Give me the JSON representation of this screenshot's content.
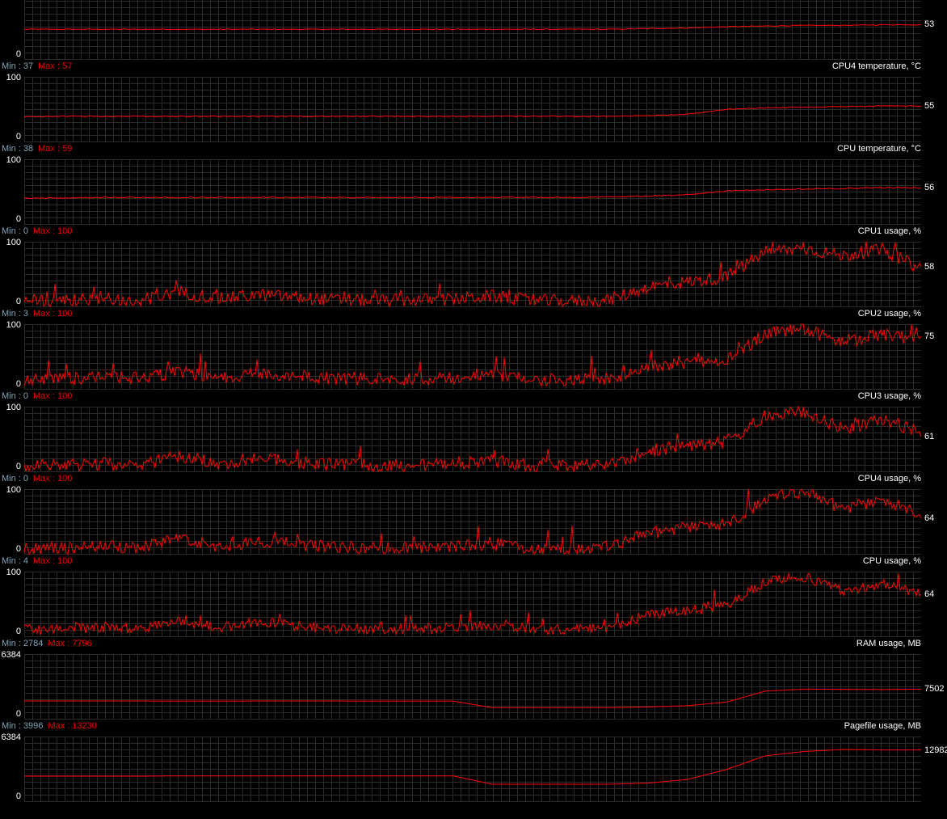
{
  "line_color": "#ff0000",
  "min_color": "#7fa3b8",
  "max_color": "#e80000",
  "panels": [
    {
      "title": "",
      "min": "",
      "max": "",
      "ytop": "",
      "ybot": "0",
      "scale": 100,
      "current": "53",
      "trend": [
        46,
        46,
        46,
        46,
        46,
        46,
        46,
        46,
        46,
        46,
        46,
        46,
        46,
        46,
        46,
        46,
        47,
        48,
        50,
        51,
        52,
        52,
        53,
        53
      ],
      "noise": 0.6
    },
    {
      "title": "CPU4 temperature, °C",
      "min": "Min : 37",
      "max": "Max : 57",
      "ytop": "100",
      "ybot": "0",
      "scale": 100,
      "current": "55",
      "trend": [
        38,
        39,
        39,
        39,
        39,
        39,
        39,
        39,
        39,
        39,
        39,
        39,
        39,
        39,
        39,
        39,
        40,
        42,
        50,
        52,
        53,
        54,
        55,
        55
      ],
      "noise": 0.7
    },
    {
      "title": "CPU temperature, °C",
      "min": "Min : 38",
      "max": "Max : 59",
      "ytop": "100",
      "ybot": "0",
      "scale": 100,
      "current": "56",
      "trend": [
        40,
        40,
        41,
        41,
        41,
        41,
        41,
        41,
        41,
        41,
        41,
        41,
        41,
        41,
        41,
        42,
        43,
        45,
        51,
        53,
        54,
        55,
        56,
        56
      ],
      "noise": 0.8
    },
    {
      "title": "CPU1 usage, %",
      "min": "Min : 0",
      "max": "Max : 100",
      "ytop": "100",
      "ybot": "0",
      "scale": 100,
      "current": "58",
      "trend": [
        8,
        9,
        12,
        10,
        22,
        12,
        18,
        14,
        10,
        9,
        10,
        11,
        16,
        9,
        8,
        10,
        30,
        38,
        45,
        85,
        90,
        78,
        88,
        58
      ],
      "noise": 10
    },
    {
      "title": "CPU2 usage, %",
      "min": "Min : 3",
      "max": "Max : 100",
      "ytop": "100",
      "ybot": "0",
      "scale": 100,
      "current": "75",
      "trend": [
        15,
        16,
        18,
        16,
        26,
        18,
        24,
        20,
        16,
        15,
        16,
        17,
        20,
        15,
        14,
        15,
        35,
        40,
        45,
        85,
        92,
        70,
        85,
        75
      ],
      "noise": 10
    },
    {
      "title": "CPU3 usage, %",
      "min": "Min : 0",
      "max": "Max : 100",
      "ytop": "100",
      "ybot": "0",
      "scale": 100,
      "current": "61",
      "trend": [
        8,
        9,
        12,
        10,
        24,
        12,
        20,
        14,
        10,
        9,
        10,
        11,
        16,
        9,
        8,
        10,
        32,
        40,
        45,
        85,
        92,
        65,
        80,
        61
      ],
      "noise": 10
    },
    {
      "title": "CPU4 usage, %",
      "min": "Min : 0",
      "max": "Max : 100",
      "ytop": "100",
      "ybot": "0",
      "scale": 100,
      "current": "64",
      "trend": [
        8,
        9,
        12,
        10,
        24,
        12,
        20,
        14,
        10,
        9,
        10,
        11,
        16,
        9,
        8,
        10,
        32,
        40,
        45,
        85,
        95,
        70,
        80,
        64
      ],
      "noise": 10
    },
    {
      "title": "CPU usage, %",
      "min": "Min : 4",
      "max": "Max : 100",
      "ytop": "100",
      "ybot": "0",
      "scale": 100,
      "current": "64",
      "trend": [
        10,
        11,
        14,
        12,
        24,
        14,
        22,
        16,
        12,
        11,
        12,
        13,
        17,
        11,
        10,
        12,
        34,
        40,
        46,
        85,
        92,
        70,
        82,
        64
      ],
      "noise": 8
    },
    {
      "title": "RAM usage, MB",
      "min": "Min : 2784",
      "max": "Max : 7796",
      "ytop": "6384",
      "ybot": "0",
      "scale": 16384,
      "current": "7502",
      "trend": [
        4500,
        4500,
        4500,
        4500,
        4480,
        4480,
        4500,
        4500,
        4500,
        4480,
        4480,
        4480,
        2800,
        2800,
        2800,
        2800,
        3000,
        3300,
        4200,
        7000,
        7500,
        7450,
        7400,
        7502
      ],
      "noise": 0
    },
    {
      "title": "Pagefile usage, MB",
      "min": "Min : 3996",
      "max": "Max : 13230",
      "ytop": "6384",
      "ybot": "0",
      "scale": 16384,
      "current": "12982",
      "trend": [
        6350,
        6350,
        6350,
        6350,
        6400,
        6400,
        6420,
        6420,
        6400,
        6400,
        6400,
        6400,
        4300,
        4300,
        4300,
        4300,
        4600,
        5500,
        8000,
        11500,
        12600,
        13100,
        12982,
        12982
      ],
      "noise": 0
    }
  ]
}
